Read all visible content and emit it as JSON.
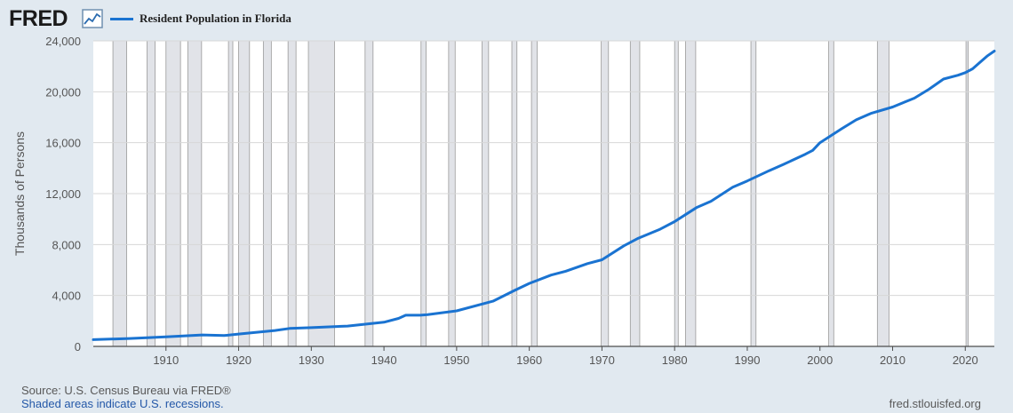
{
  "header": {
    "logo_text": "FRED",
    "logo_icon": "chart-line-icon",
    "legend_label": "Resident Population in Florida",
    "series_color": "#1a73d1"
  },
  "chart_data": {
    "type": "line",
    "title": "",
    "xlabel": "",
    "ylabel": "Thousands of Persons",
    "xlim": [
      1900,
      2024
    ],
    "ylim": [
      0,
      24000
    ],
    "y_ticks": [
      0,
      4000,
      8000,
      12000,
      16000,
      20000,
      24000
    ],
    "y_tick_labels": [
      "0",
      "4,000",
      "8,000",
      "12,000",
      "16,000",
      "20,000",
      "24,000"
    ],
    "x_ticks": [
      1910,
      1920,
      1930,
      1940,
      1950,
      1960,
      1970,
      1980,
      1990,
      2000,
      2010,
      2020
    ],
    "x_tick_labels": [
      "1910",
      "1920",
      "1930",
      "1940",
      "1950",
      "1960",
      "1970",
      "1980",
      "1990",
      "2000",
      "2010",
      "2020"
    ],
    "grid": "horizontal",
    "legend": "top-left",
    "series": [
      {
        "name": "Resident Population in Florida",
        "x": [
          1900,
          1905,
          1910,
          1915,
          1918,
          1920,
          1925,
          1927,
          1930,
          1935,
          1940,
          1942,
          1943,
          1945,
          1946,
          1950,
          1955,
          1958,
          1960,
          1963,
          1965,
          1968,
          1970,
          1973,
          1975,
          1978,
          1980,
          1983,
          1985,
          1988,
          1990,
          1993,
          1995,
          1998,
          1999,
          2000,
          2003,
          2005,
          2007,
          2010,
          2013,
          2015,
          2017,
          2019,
          2020,
          2021,
          2022,
          2023,
          2024
        ],
        "values": [
          530,
          620,
          750,
          900,
          850,
          970,
          1250,
          1410,
          1470,
          1600,
          1900,
          2200,
          2450,
          2450,
          2500,
          2790,
          3550,
          4400,
          4950,
          5600,
          5900,
          6500,
          6800,
          7900,
          8500,
          9200,
          9800,
          10900,
          11400,
          12500,
          13000,
          13800,
          14300,
          15100,
          15400,
          16000,
          17100,
          17800,
          18300,
          18800,
          19500,
          20200,
          21000,
          21300,
          21500,
          21800,
          22300,
          22800,
          23200
        ]
      }
    ],
    "recessions": [
      [
        1902.7,
        1904.6
      ],
      [
        1907.4,
        1908.5
      ],
      [
        1910.0,
        1912.0
      ],
      [
        1913.0,
        1914.9
      ],
      [
        1918.6,
        1919.2
      ],
      [
        1920.0,
        1921.5
      ],
      [
        1923.4,
        1924.5
      ],
      [
        1926.8,
        1927.9
      ],
      [
        1929.6,
        1933.2
      ],
      [
        1937.4,
        1938.5
      ],
      [
        1945.1,
        1945.8
      ],
      [
        1948.9,
        1949.8
      ],
      [
        1953.5,
        1954.4
      ],
      [
        1957.6,
        1958.3
      ],
      [
        1960.3,
        1961.1
      ],
      [
        1969.9,
        1970.9
      ],
      [
        1973.9,
        1975.2
      ],
      [
        1980.0,
        1980.5
      ],
      [
        1981.5,
        1982.9
      ],
      [
        1990.5,
        1991.2
      ],
      [
        2001.2,
        2001.9
      ],
      [
        2007.9,
        2009.5
      ],
      [
        2020.1,
        2020.4
      ]
    ]
  },
  "footer": {
    "source": "Source: U.S. Census Bureau via FRED®",
    "note": "Shaded areas indicate U.S. recessions.",
    "url": "fred.stlouisfed.org"
  }
}
